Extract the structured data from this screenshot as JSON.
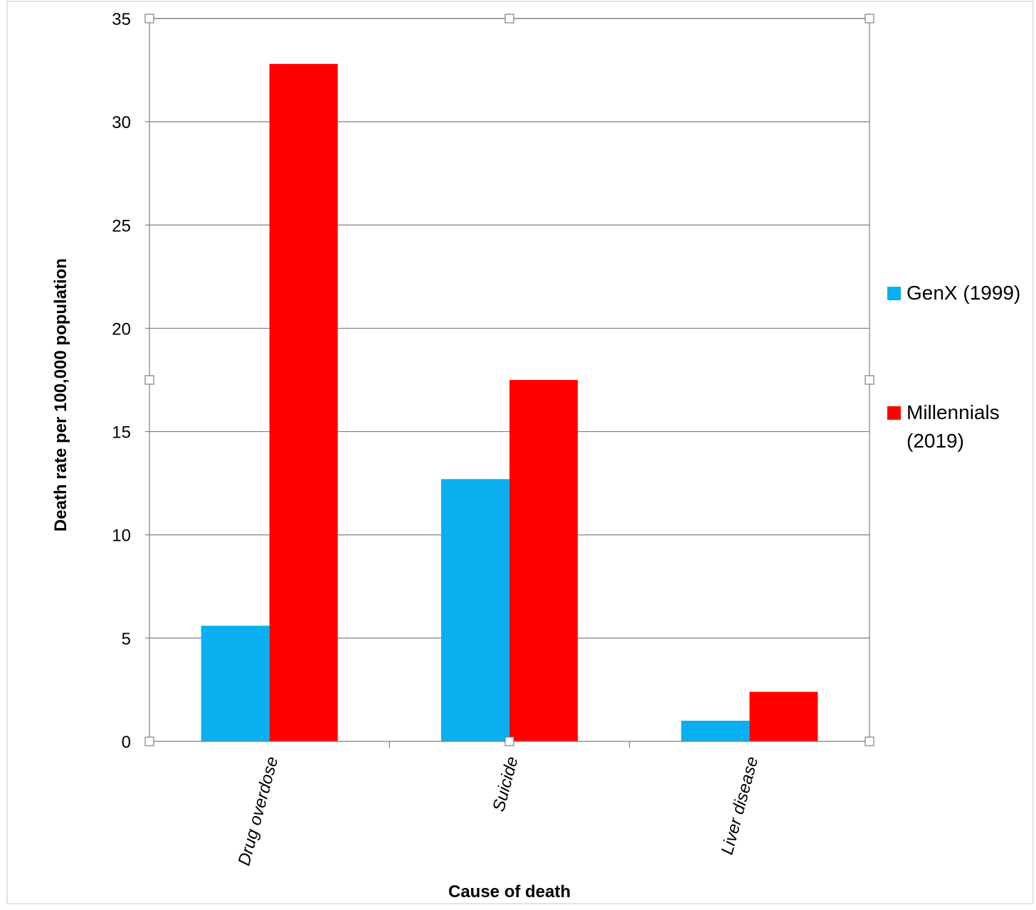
{
  "chart_data": {
    "type": "bar",
    "categories": [
      "Drug overdose",
      "Suicide",
      "Liver disease"
    ],
    "series": [
      {
        "name": "GenX (1999)",
        "values": [
          5.6,
          12.7,
          1.0
        ],
        "color": "#0AAFEF"
      },
      {
        "name": "Millennials (2019)",
        "values": [
          32.8,
          17.5,
          2.4
        ],
        "color": "#FF0000"
      }
    ],
    "xlabel": "Cause of death",
    "ylabel": "Death rate per 100,000 population",
    "ylim": [
      0,
      35
    ],
    "yticks": [
      0,
      5,
      10,
      15,
      20,
      25,
      30,
      35
    ],
    "grid": true,
    "legend_position": "right"
  }
}
